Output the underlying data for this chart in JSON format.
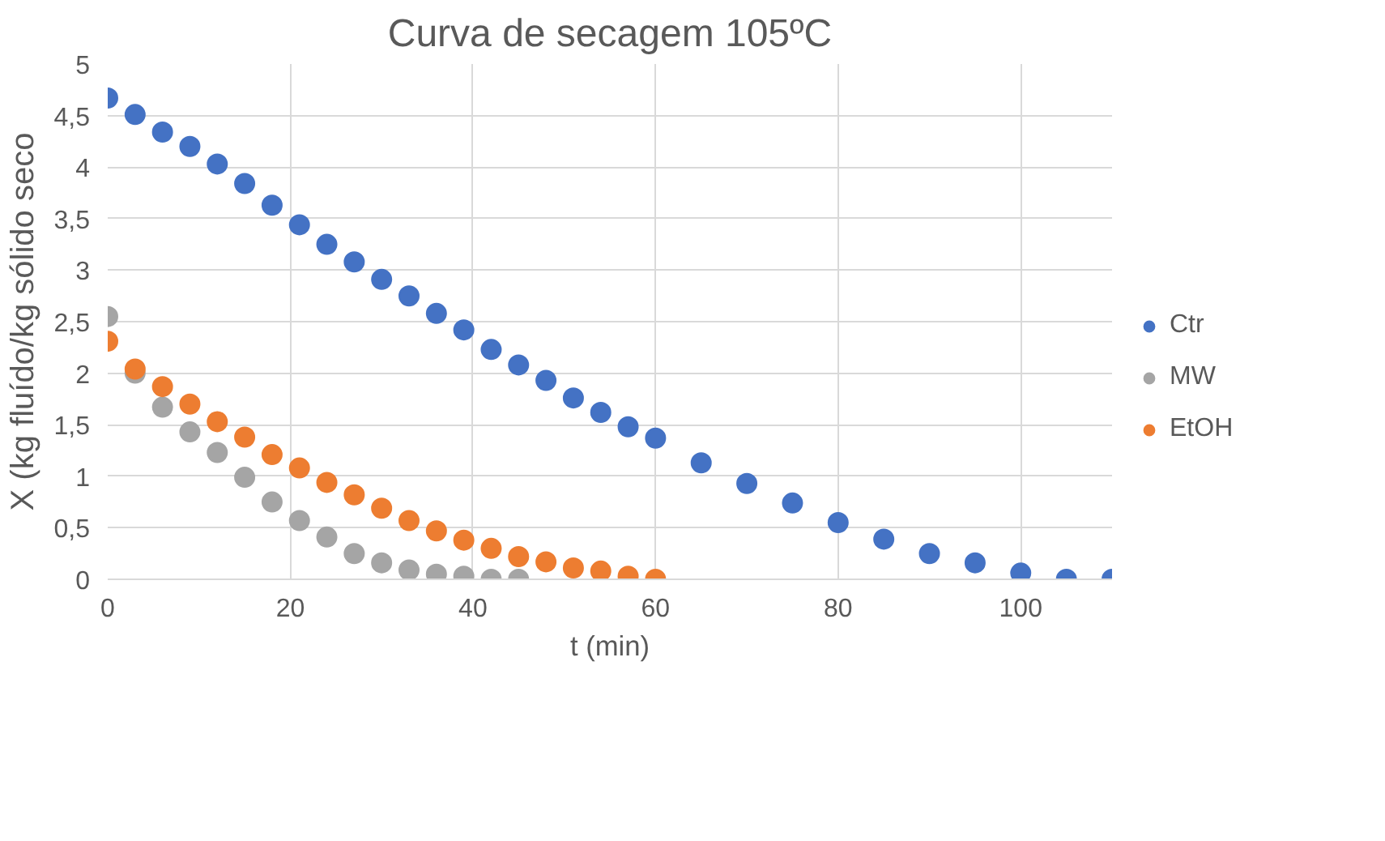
{
  "chart_data": {
    "type": "scatter",
    "title": "Curva de secagem 105ºC",
    "xlabel": "t (min)",
    "ylabel": "X (kg fluído/kg sólido seco",
    "xlim": [
      0,
      110
    ],
    "xticks": [
      0,
      20,
      40,
      60,
      80,
      100
    ],
    "ylim": [
      0,
      5
    ],
    "yticks": [
      0,
      {
        "value": 0.5,
        "label": "0,5"
      },
      1,
      {
        "value": 1.5,
        "label": "1,5"
      },
      2,
      {
        "value": 2.5,
        "label": "2,5"
      },
      3,
      {
        "value": 3.5,
        "label": "3,5"
      },
      4,
      {
        "value": 4.5,
        "label": "4,5"
      },
      5
    ],
    "grid": true,
    "legend": "right",
    "marker": "circle",
    "series": [
      {
        "name": "Ctr",
        "color": "#4472c4",
        "x": [
          0,
          3,
          6,
          9,
          12,
          15,
          18,
          21,
          24,
          27,
          30,
          33,
          36,
          39,
          42,
          45,
          48,
          51,
          54,
          57,
          60,
          65,
          70,
          75,
          80,
          85,
          90,
          95,
          100,
          105,
          110
        ],
        "values": [
          4.67,
          4.51,
          4.34,
          4.2,
          4.03,
          3.84,
          3.63,
          3.44,
          3.25,
          3.08,
          2.91,
          2.75,
          2.58,
          2.42,
          2.23,
          2.08,
          1.93,
          1.76,
          1.62,
          1.48,
          1.37,
          1.13,
          0.93,
          0.74,
          0.55,
          0.39,
          0.25,
          0.16,
          0.06,
          0,
          0
        ]
      },
      {
        "name": "MW",
        "color": "#a5a5a5",
        "x": [
          0,
          3,
          6,
          9,
          12,
          15,
          18,
          21,
          24,
          27,
          30,
          33,
          36,
          39,
          42,
          45
        ],
        "values": [
          2.55,
          2.0,
          1.67,
          1.43,
          1.23,
          0.99,
          0.75,
          0.57,
          0.41,
          0.25,
          0.16,
          0.09,
          0.05,
          0.03,
          0,
          0
        ]
      },
      {
        "name": "EtOH",
        "color": "#ed7d31",
        "x": [
          0,
          3,
          6,
          9,
          12,
          15,
          18,
          21,
          24,
          27,
          30,
          33,
          36,
          39,
          42,
          45,
          48,
          51,
          54,
          57,
          60
        ],
        "values": [
          2.31,
          2.04,
          1.87,
          1.7,
          1.53,
          1.38,
          1.21,
          1.08,
          0.94,
          0.82,
          0.69,
          0.57,
          0.47,
          0.38,
          0.3,
          0.22,
          0.17,
          0.11,
          0.08,
          0.03,
          0
        ]
      }
    ]
  }
}
